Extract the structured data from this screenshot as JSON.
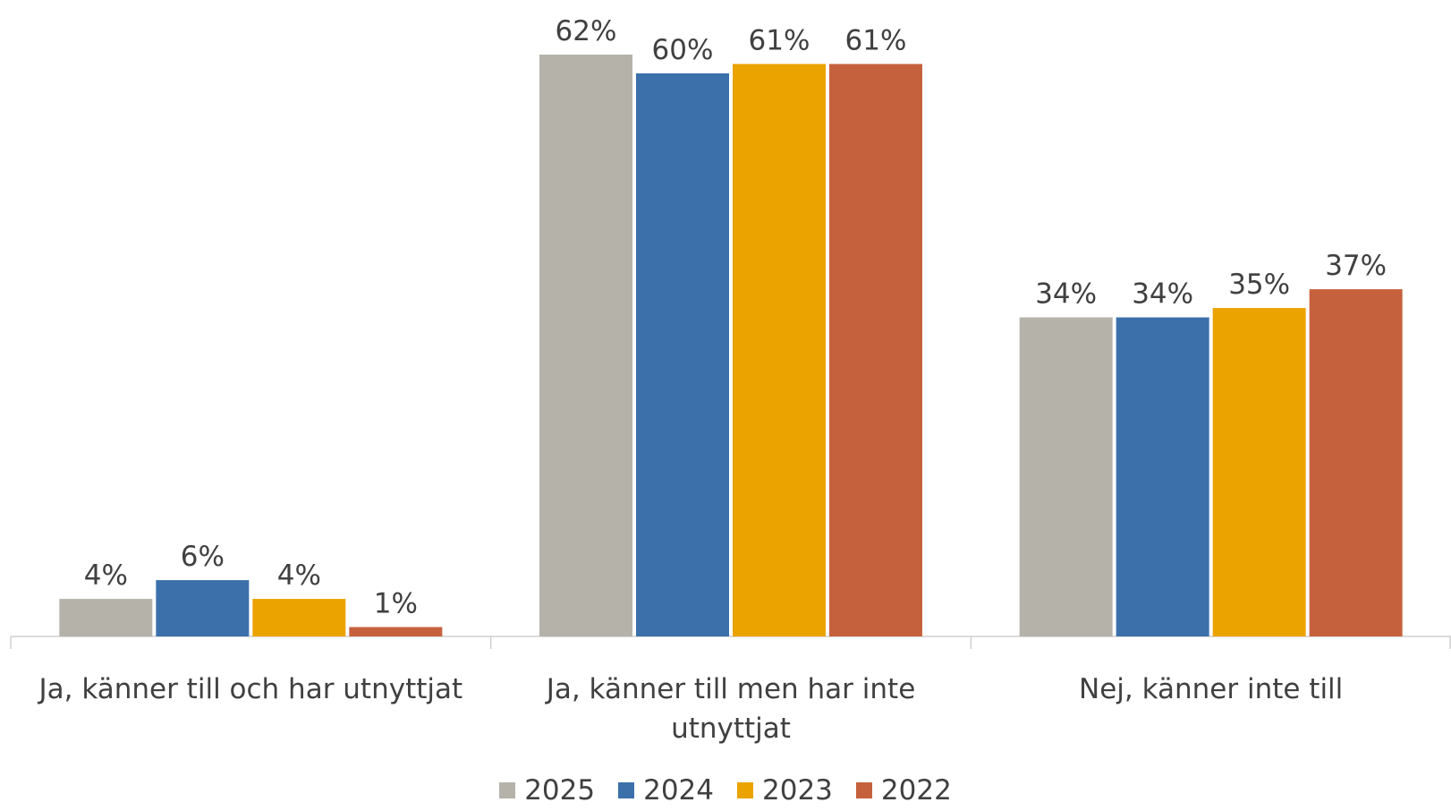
{
  "chart_data": {
    "type": "bar",
    "categories": [
      "Ja, känner till och har utnyttjat",
      "Ja, känner till men har inte utnyttjat",
      "Nej, känner inte till"
    ],
    "series": [
      {
        "name": "2025",
        "color": "#b5b2aa",
        "values": [
          4,
          62,
          34
        ],
        "value_labels": [
          "4%",
          "62%",
          "34%"
        ]
      },
      {
        "name": "2024",
        "color": "#3b70aa",
        "values": [
          6,
          60,
          34
        ],
        "value_labels": [
          "6%",
          "60%",
          "34%"
        ]
      },
      {
        "name": "2023",
        "color": "#eba300",
        "values": [
          4,
          61,
          35
        ],
        "value_labels": [
          "4%",
          "61%",
          "35%"
        ]
      },
      {
        "name": "2022",
        "color": "#c5623d",
        "values": [
          1,
          61,
          37
        ],
        "value_labels": [
          "1%",
          "61%",
          "37%"
        ]
      }
    ],
    "legend": "bottom"
  }
}
